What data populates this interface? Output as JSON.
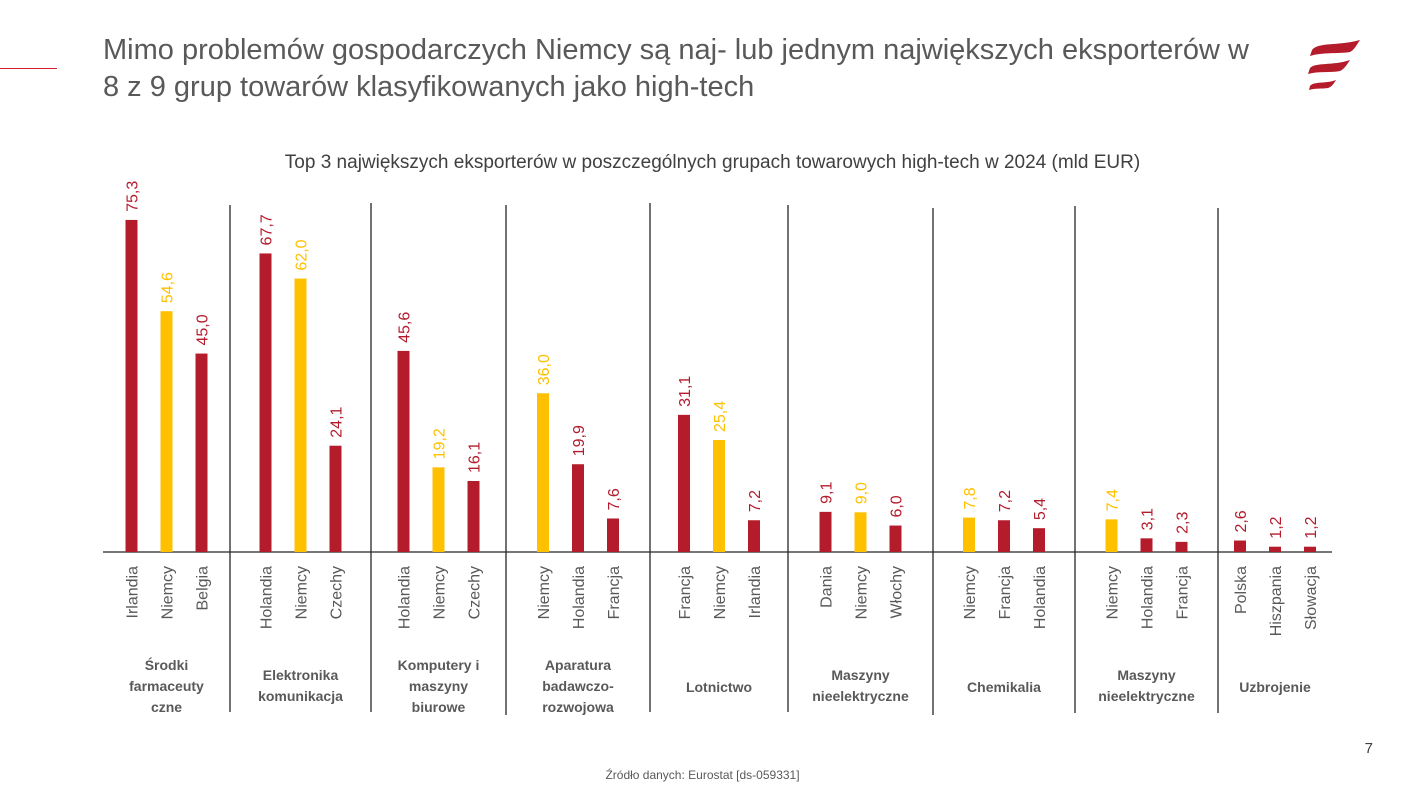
{
  "header": {
    "title": "Mimo problemów gospodarczych Niemcy są naj- lub jednym największych eksporterów w 8 z 9 grup towarów klasyfikowanych jako high-tech",
    "logo": "brand-logo-icon"
  },
  "colors": {
    "other": "#b41c2c",
    "germany": "#ffc000",
    "text": "#595959",
    "accent": "#d9202e"
  },
  "chart_data": {
    "type": "bar",
    "title": "Top 3 największych eksporterów w poszczególnych grupach towarowych high-tech w 2024 (mld EUR)",
    "xlabel": "",
    "ylabel": "",
    "unit": "mld EUR",
    "ylim": [
      0,
      80
    ],
    "grid": false,
    "legend": "none",
    "groups": [
      {
        "name": "Środki farmaceuty czne",
        "label_lines": [
          "Środki",
          "farmaceuty",
          "czne"
        ],
        "bars": [
          {
            "country": "Irlandia",
            "value": 75.3,
            "label": "75,3",
            "germany": false
          },
          {
            "country": "Niemcy",
            "value": 54.6,
            "label": "54,6",
            "germany": true
          },
          {
            "country": "Belgia",
            "value": 45.0,
            "label": "45,0",
            "germany": false
          }
        ]
      },
      {
        "name": "Elektronika komunikacja",
        "label_lines": [
          "Elektronika",
          "komunikacja"
        ],
        "bars": [
          {
            "country": "Holandia",
            "value": 67.7,
            "label": "67,7",
            "germany": false
          },
          {
            "country": "Niemcy",
            "value": 62.0,
            "label": "62,0",
            "germany": true
          },
          {
            "country": "Czechy",
            "value": 24.1,
            "label": "24,1",
            "germany": false
          }
        ]
      },
      {
        "name": "Komputery i maszyny biurowe",
        "label_lines": [
          "Komputery i",
          "maszyny",
          "biurowe"
        ],
        "bars": [
          {
            "country": "Holandia",
            "value": 45.6,
            "label": "45,6",
            "germany": false
          },
          {
            "country": "Niemcy",
            "value": 19.2,
            "label": "19,2",
            "germany": true
          },
          {
            "country": "Czechy",
            "value": 16.1,
            "label": "16,1",
            "germany": false
          }
        ]
      },
      {
        "name": "Aparatura badawczo-rozwojowa",
        "label_lines": [
          "Aparatura",
          "badawczo-",
          "rozwojowa"
        ],
        "bars": [
          {
            "country": "Niemcy",
            "value": 36.0,
            "label": "36,0",
            "germany": true
          },
          {
            "country": "Holandia",
            "value": 19.9,
            "label": "19,9",
            "germany": false
          },
          {
            "country": "Francja",
            "value": 7.6,
            "label": "7,6",
            "germany": false
          }
        ]
      },
      {
        "name": "Lotnictwo",
        "label_lines": [
          "Lotnictwo"
        ],
        "bars": [
          {
            "country": "Francja",
            "value": 31.1,
            "label": "31,1",
            "germany": false
          },
          {
            "country": "Niemcy",
            "value": 25.4,
            "label": "25,4",
            "germany": true
          },
          {
            "country": "Irlandia",
            "value": 7.2,
            "label": "7,2",
            "germany": false
          }
        ]
      },
      {
        "name": "Maszyny nieelektryczne",
        "label_lines": [
          "Maszyny",
          "nieelektryczne"
        ],
        "bars": [
          {
            "country": "Dania",
            "value": 9.1,
            "label": "9,1",
            "germany": false
          },
          {
            "country": "Niemcy",
            "value": 9.0,
            "label": "9,0",
            "germany": true
          },
          {
            "country": "Włochy",
            "value": 6.0,
            "label": "6,0",
            "germany": false
          }
        ]
      },
      {
        "name": "Chemikalia",
        "label_lines": [
          "Chemikalia"
        ],
        "bars": [
          {
            "country": "Niemcy",
            "value": 7.8,
            "label": "7,8",
            "germany": true
          },
          {
            "country": "Francja",
            "value": 7.2,
            "label": "7,2",
            "germany": false
          },
          {
            "country": "Holandia",
            "value": 5.4,
            "label": "5,4",
            "germany": false
          }
        ]
      },
      {
        "name": "Maszyny nieelektryczne",
        "label_lines": [
          "Maszyny",
          "nieelektryczne"
        ],
        "bars": [
          {
            "country": "Niemcy",
            "value": 7.4,
            "label": "7,4",
            "germany": true
          },
          {
            "country": "Holandia",
            "value": 3.1,
            "label": "3,1",
            "germany": false
          },
          {
            "country": "Francja",
            "value": 2.3,
            "label": "2,3",
            "germany": false
          }
        ]
      },
      {
        "name": "Uzbrojenie",
        "label_lines": [
          "Uzbrojenie"
        ],
        "bars": [
          {
            "country": "Polska",
            "value": 2.6,
            "label": "2,6",
            "germany": false
          },
          {
            "country": "Hiszpania",
            "value": 1.2,
            "label": "1,2",
            "germany": false
          },
          {
            "country": "Słowacja",
            "value": 1.2,
            "label": "1,2",
            "germany": false
          }
        ]
      }
    ]
  },
  "footer": {
    "page_number": "7",
    "source": "Źródło danych: Eurostat [ds-059331]"
  }
}
